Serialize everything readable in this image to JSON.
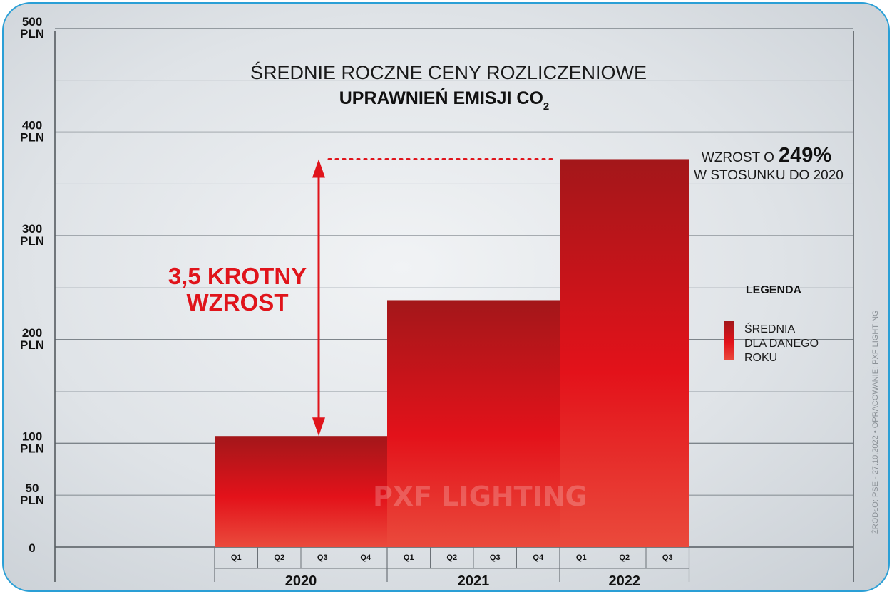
{
  "chart_data": {
    "type": "bar",
    "title": "ŚREDNIE ROCZNE CENY ROZLICZENIOWE",
    "subtitle_main": "UPRAWNIEŃ EMISJI CO",
    "subtitle_sub": "2",
    "y_ticks": [
      {
        "value": 0,
        "label": "0"
      },
      {
        "value": 50,
        "label": "50 PLN"
      },
      {
        "value": 100,
        "label": "100 PLN"
      },
      {
        "value": 200,
        "label": "200 PLN"
      },
      {
        "value": 300,
        "label": "300 PLN"
      },
      {
        "value": 400,
        "label": "400 PLN"
      },
      {
        "value": 500,
        "label": "500 PLN"
      }
    ],
    "ylim": [
      0,
      500
    ],
    "grid": true,
    "categories": [
      "2020",
      "2021",
      "2022"
    ],
    "quarters": [
      [
        "Q1",
        "Q2",
        "Q3",
        "Q4"
      ],
      [
        "Q1",
        "Q2",
        "Q3",
        "Q4"
      ],
      [
        "Q1",
        "Q2",
        "Q3"
      ]
    ],
    "values": [
      107,
      238,
      374
    ],
    "annotation_multiplier": "3,5 KROTNY",
    "annotation_multiplier_2": "WZROST",
    "increase_prefix": "WZROST O",
    "increase_value": "249%",
    "increase_suffix": "W STOSUNKU DO 2020",
    "legend": {
      "title": "LEGENDA",
      "item_lines": [
        "ŚREDNIA",
        "DLA DANEGO",
        "ROKU"
      ],
      "placement": "right"
    },
    "source": "ŹRÓDŁO: PSE - 27.10.2022  • OPRACOWANIE: PXF LIGHTING",
    "watermark": "PXF LIGHTING"
  },
  "colors": {
    "bar_top": "#a3171a",
    "bar_mid": "#e3121a",
    "bar_bottom": "#ea4a3c",
    "accent": "#e0141b",
    "border": "#2a9fd6"
  }
}
